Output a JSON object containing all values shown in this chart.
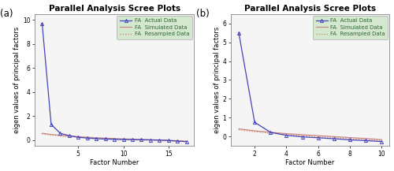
{
  "title": "Parallel Analysis Scree Plots",
  "xlabel": "Factor Number",
  "ylabel": "eigen values of principal factors",
  "plot_bg_color": "#f5f5f5",
  "fig_bg_color": "#ffffff",
  "panel_a": {
    "label": "(a)",
    "n_factors": 17,
    "xlim": [
      0.2,
      17.8
    ],
    "ylim": [
      -0.5,
      10.5
    ],
    "yticks": [
      0,
      2,
      4,
      6,
      8,
      10
    ],
    "ytick_labels": [
      "0",
      "2",
      "4",
      "6",
      "8",
      "10"
    ],
    "xticks": [
      5,
      10,
      15
    ],
    "fa_actual": [
      9.7,
      1.3,
      0.55,
      0.35,
      0.22,
      0.15,
      0.1,
      0.07,
      0.05,
      0.03,
      0.02,
      0.01,
      0.0,
      -0.02,
      -0.05,
      -0.1,
      -0.15
    ],
    "fa_simulated": [
      0.55,
      0.45,
      0.38,
      0.32,
      0.27,
      0.22,
      0.18,
      0.14,
      0.11,
      0.08,
      0.06,
      0.03,
      0.01,
      -0.01,
      -0.04,
      -0.07,
      -0.11
    ],
    "fa_resampled": [
      0.5,
      0.4,
      0.33,
      0.27,
      0.22,
      0.17,
      0.13,
      0.09,
      0.06,
      0.03,
      0.01,
      -0.01,
      -0.03,
      -0.06,
      -0.09,
      -0.12,
      -0.16
    ]
  },
  "panel_b": {
    "label": "(b)",
    "n_factors": 10,
    "xlim": [
      0.5,
      10.5
    ],
    "ylim": [
      -0.5,
      6.5
    ],
    "yticks": [
      0,
      1,
      2,
      3,
      4,
      5,
      6
    ],
    "ytick_labels": [
      "0",
      "1",
      "2",
      "3",
      "4",
      "5",
      "6"
    ],
    "xticks": [
      2,
      4,
      6,
      8,
      10
    ],
    "fa_actual": [
      5.5,
      0.75,
      0.22,
      0.06,
      -0.02,
      -0.07,
      -0.12,
      -0.18,
      -0.22,
      -0.27
    ],
    "fa_simulated": [
      0.4,
      0.3,
      0.22,
      0.15,
      0.09,
      0.04,
      -0.01,
      -0.06,
      -0.11,
      -0.17
    ],
    "fa_resampled": [
      0.35,
      0.25,
      0.17,
      0.1,
      0.04,
      -0.01,
      -0.06,
      -0.12,
      -0.17,
      -0.23
    ]
  },
  "line_actual_color": "#4444bb",
  "line_simulated_color": "#cc8888",
  "line_resampled_color": "#cc8855",
  "legend_bg": "#d4e8d0",
  "legend_edge": "#aaaaaa",
  "legend_labels": [
    "FA  Actual Data",
    "FA  Simulated Data",
    "FA  Resampled Data"
  ],
  "title_fontsize": 7.5,
  "axis_label_fontsize": 6.0,
  "tick_fontsize": 5.5,
  "legend_fontsize": 5.0,
  "panel_label_fontsize": 8.5
}
